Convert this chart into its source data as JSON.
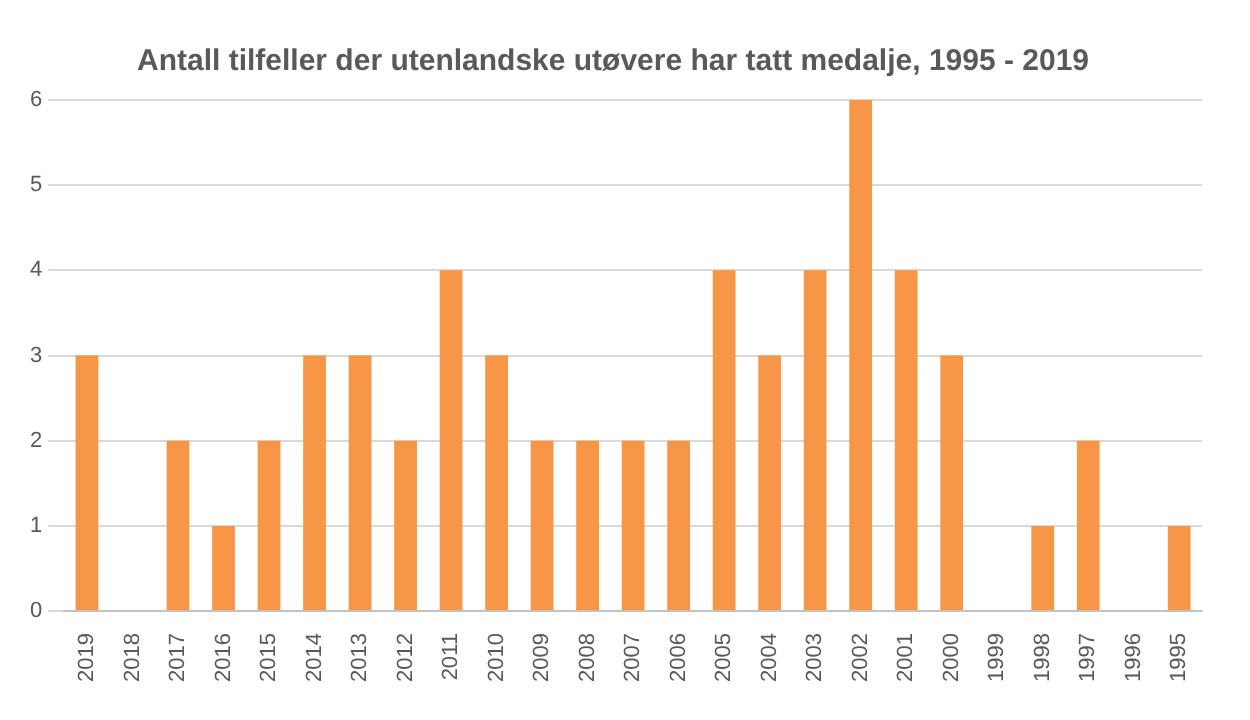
{
  "chart_data": {
    "type": "bar",
    "title": "Antall tilfeller der utenlandske utøvere har tatt medalje, 1995 - 2019",
    "categories": [
      "2019",
      "2018",
      "2017",
      "2016",
      "2015",
      "2014",
      "2013",
      "2012",
      "2011",
      "2010",
      "2009",
      "2008",
      "2007",
      "2006",
      "2005",
      "2004",
      "2003",
      "2002",
      "2001",
      "2000",
      "1999",
      "1998",
      "1997",
      "1996",
      "1995"
    ],
    "values": [
      3,
      0,
      2,
      1,
      2,
      3,
      3,
      2,
      4,
      3,
      2,
      2,
      2,
      2,
      4,
      3,
      4,
      6,
      4,
      3,
      0,
      1,
      2,
      0,
      1
    ],
    "color": "#f79646",
    "ylim": [
      0,
      6
    ],
    "yticks": [
      0,
      1,
      2,
      3,
      4,
      5,
      6
    ],
    "grid": "y",
    "legend": false
  }
}
